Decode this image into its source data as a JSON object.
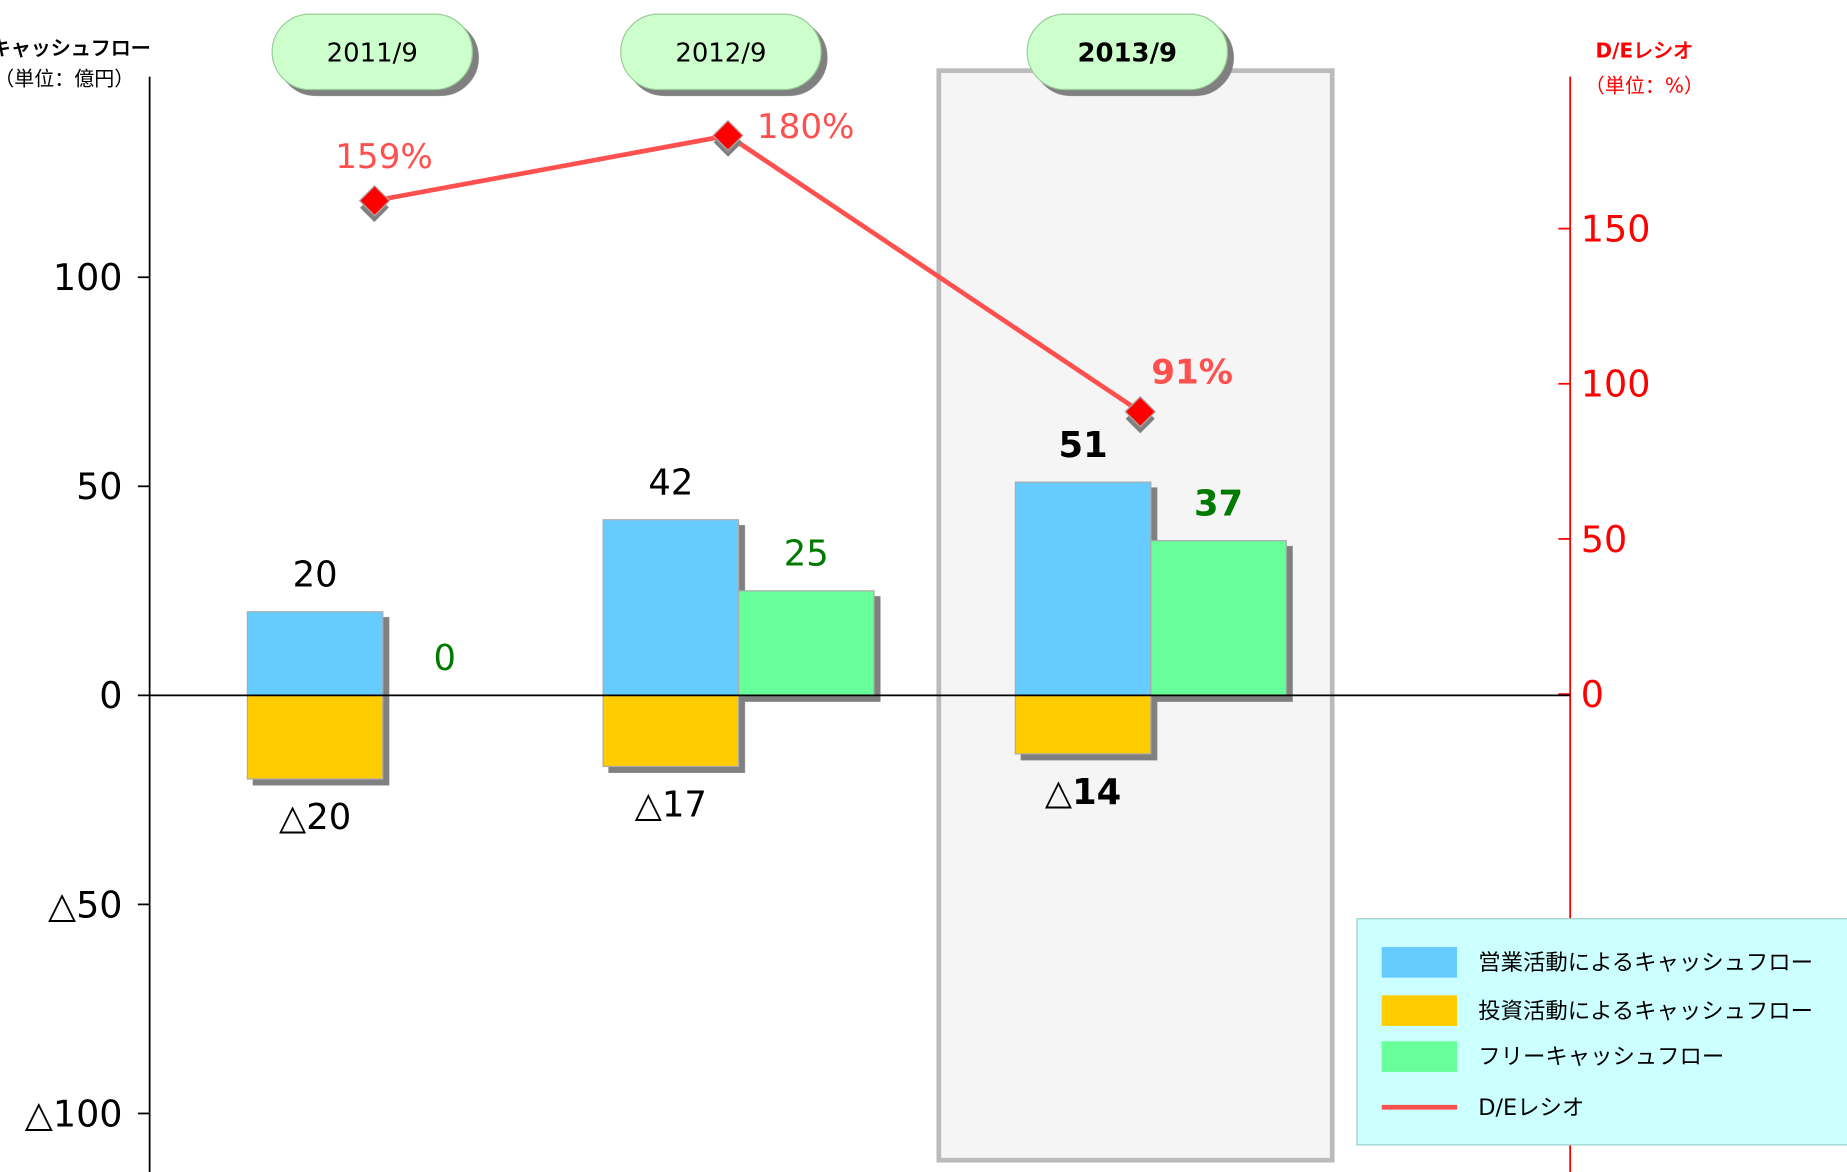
{
  "chart_data": {
    "type": "bar",
    "y_axis_title": "キャッシュフロー",
    "y_axis_unit": "（単位：億円）",
    "y2_axis_title": "D/Eレシオ",
    "y2_axis_unit": "（単位：%）",
    "categories": [
      "2011/9",
      "2012/9",
      "2013/9"
    ],
    "highlight": 2,
    "series": [
      {
        "name": "営業活動によるキャッシュフロー",
        "type": "bar",
        "color": "#66ccff",
        "label_color": "#000000",
        "values": [
          20,
          42,
          51
        ]
      },
      {
        "name": "投資活動によるキャッシュフロー",
        "type": "bar",
        "color": "#ffcc00",
        "label_color": "#000000",
        "values": [
          -20,
          -17,
          -14
        ],
        "value_labels": [
          "△20",
          "△17",
          "△14"
        ]
      },
      {
        "name": "フリーキャッシュフロー",
        "type": "bar",
        "color": "#66ff99",
        "label_color": "#007a00",
        "values": [
          0,
          25,
          37
        ]
      },
      {
        "name": "D/Eレシオ",
        "type": "line",
        "axis": "y2",
        "color": "#ff5050",
        "values": [
          159,
          180,
          91
        ],
        "value_labels": [
          "159%",
          "180%",
          "91%"
        ]
      }
    ],
    "ylim": [
      -114,
      148
    ],
    "yticks": [
      {
        "value": -100,
        "label": "△100"
      },
      {
        "value": -50,
        "label": "△50"
      },
      0,
      50,
      100
    ],
    "y2lim": [
      -154,
      199
    ],
    "y2ticks": [
      0,
      50,
      100,
      150
    ],
    "y2_color": "#ff0000",
    "legend": "bottom-right"
  }
}
